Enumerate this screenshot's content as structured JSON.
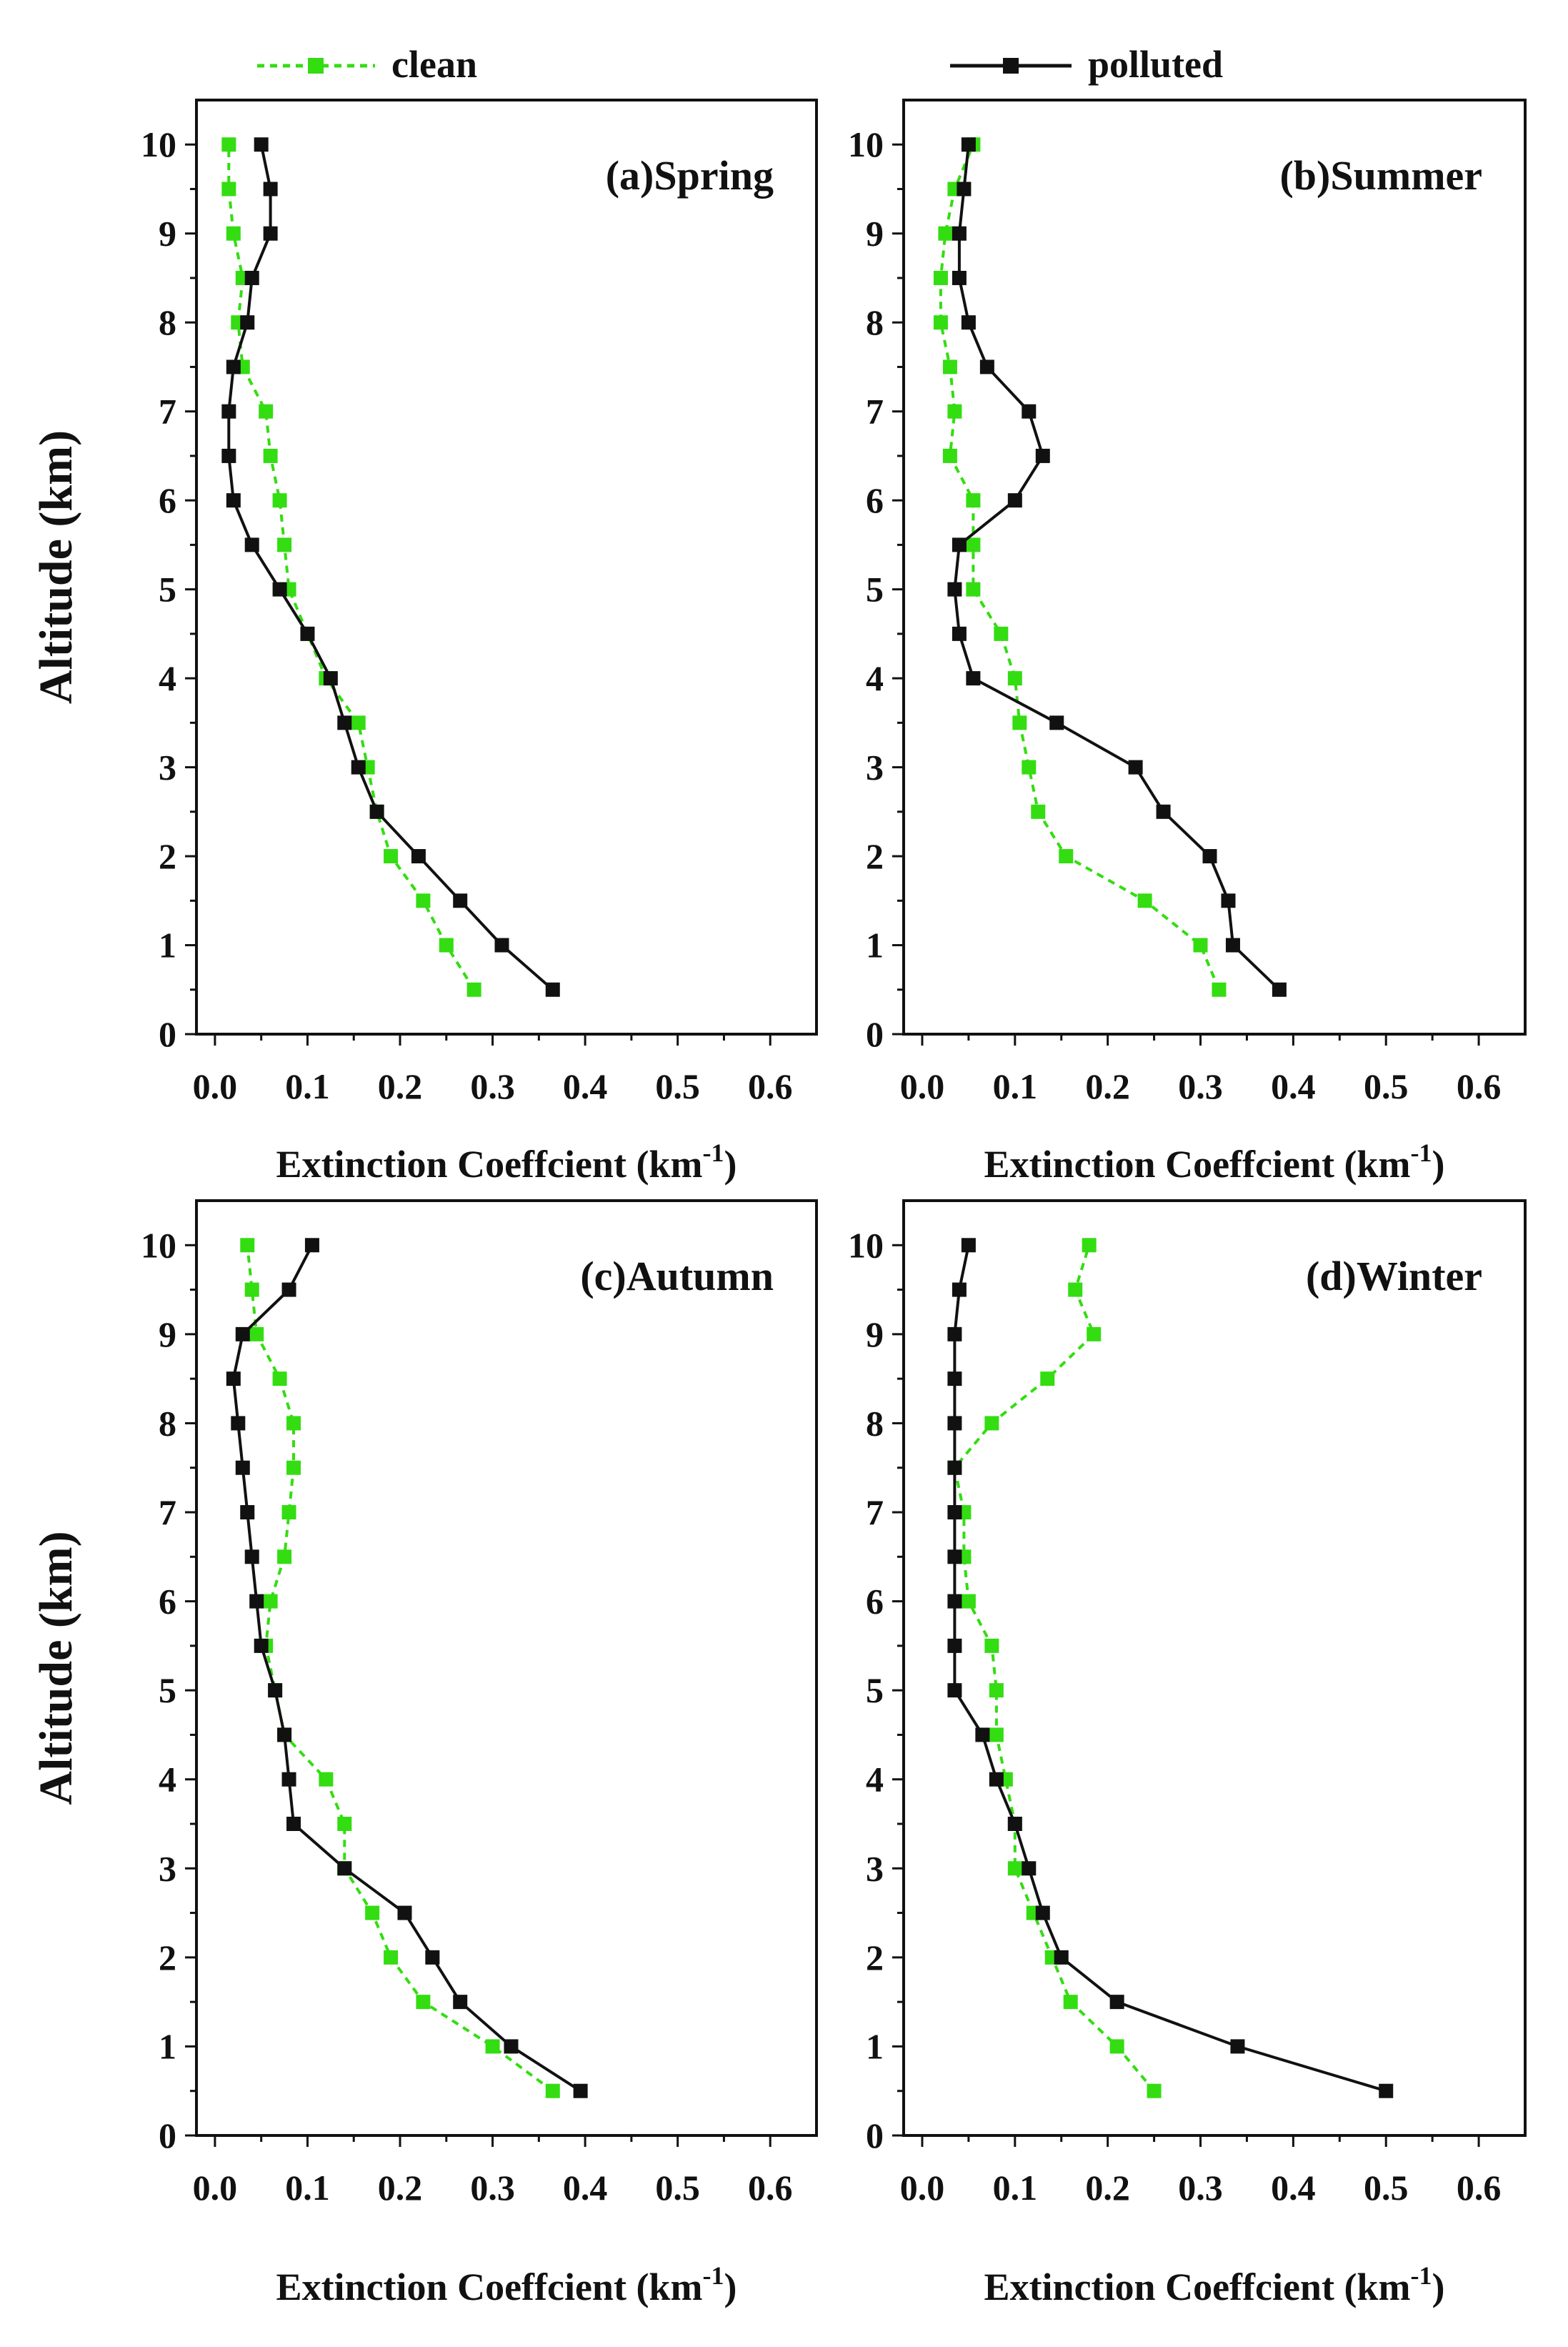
{
  "legend": {
    "entries": [
      {
        "label": "clean",
        "color": "#33dd11",
        "style": "dashed"
      },
      {
        "label": "polluted",
        "color": "#111111",
        "style": "solid"
      }
    ]
  },
  "chart_data": [
    {
      "type": "line",
      "title": "(a)Spring",
      "xlabel": "Extinction Coeffcient (km",
      "xlabel_sup": "-1",
      "xlabel_close": ")",
      "ylabel": "Altitude (km)",
      "xlim": [
        -0.02,
        0.65
      ],
      "ylim": [
        0,
        10.5
      ],
      "xticks": [
        "0.0",
        "0.1",
        "0.2",
        "0.3",
        "0.4",
        "0.5",
        "0.6"
      ],
      "yticks": [
        "0",
        "1",
        "2",
        "3",
        "4",
        "5",
        "6",
        "7",
        "8",
        "9",
        "10"
      ],
      "series": [
        {
          "name": "clean",
          "x": [
            0.28,
            0.25,
            0.225,
            0.19,
            0.175,
            0.165,
            0.155,
            0.12,
            0.1,
            0.08,
            0.075,
            0.07,
            0.06,
            0.055,
            0.03,
            0.025,
            0.03,
            0.02,
            0.015,
            0.015
          ],
          "y": [
            0.5,
            1,
            1.5,
            2,
            2.5,
            3,
            3.5,
            4,
            4.5,
            5,
            5.5,
            6,
            6.5,
            7,
            7.5,
            8,
            8.5,
            9,
            9.5,
            10
          ]
        },
        {
          "name": "polluted",
          "x": [
            0.365,
            0.31,
            0.265,
            0.22,
            0.175,
            0.155,
            0.14,
            0.125,
            0.1,
            0.07,
            0.04,
            0.02,
            0.015,
            0.015,
            0.02,
            0.035,
            0.04,
            0.06,
            0.06,
            0.05
          ],
          "y": [
            0.5,
            1,
            1.5,
            2,
            2.5,
            3,
            3.5,
            4,
            4.5,
            5,
            5.5,
            6,
            6.5,
            7,
            7.5,
            8,
            8.5,
            9,
            9.5,
            10
          ]
        }
      ]
    },
    {
      "type": "line",
      "title": "(b)Summer",
      "xlabel": "Extinction Coeffcient (km",
      "xlabel_sup": "-1",
      "xlabel_close": ")",
      "ylabel": "",
      "xlim": [
        -0.02,
        0.65
      ],
      "ylim": [
        0,
        10.5
      ],
      "xticks": [
        "0.0",
        "0.1",
        "0.2",
        "0.3",
        "0.4",
        "0.5",
        "0.6"
      ],
      "yticks": [
        "0",
        "1",
        "2",
        "3",
        "4",
        "5",
        "6",
        "7",
        "8",
        "9",
        "10"
      ],
      "series": [
        {
          "name": "clean",
          "x": [
            0.32,
            0.3,
            0.24,
            0.155,
            0.125,
            0.115,
            0.105,
            0.1,
            0.085,
            0.055,
            0.055,
            0.055,
            0.03,
            0.035,
            0.03,
            0.02,
            0.02,
            0.025,
            0.035,
            0.055
          ],
          "y": [
            0.5,
            1,
            1.5,
            2,
            2.5,
            3,
            3.5,
            4,
            4.5,
            5,
            5.5,
            6,
            6.5,
            7,
            7.5,
            8,
            8.5,
            9,
            9.5,
            10
          ]
        },
        {
          "name": "polluted",
          "x": [
            0.385,
            0.335,
            0.33,
            0.31,
            0.26,
            0.23,
            0.145,
            0.055,
            0.04,
            0.035,
            0.04,
            0.1,
            0.13,
            0.115,
            0.07,
            0.05,
            0.04,
            0.04,
            0.045,
            0.05
          ],
          "y": [
            0.5,
            1,
            1.5,
            2,
            2.5,
            3,
            3.5,
            4,
            4.5,
            5,
            5.5,
            6,
            6.5,
            7,
            7.5,
            8,
            8.5,
            9,
            9.5,
            10
          ]
        }
      ]
    },
    {
      "type": "line",
      "title": "(c)Autumn",
      "xlabel": "Extinction Coeffcient (km",
      "xlabel_sup": "-1",
      "xlabel_close": ")",
      "ylabel": "Altitude (km)",
      "xlim": [
        -0.02,
        0.65
      ],
      "ylim": [
        0,
        10.5
      ],
      "xticks": [
        "0.0",
        "0.1",
        "0.2",
        "0.3",
        "0.4",
        "0.5",
        "0.6"
      ],
      "yticks": [
        "0",
        "1",
        "2",
        "3",
        "4",
        "5",
        "6",
        "7",
        "8",
        "9",
        "10"
      ],
      "series": [
        {
          "name": "clean",
          "x": [
            0.365,
            0.3,
            0.225,
            0.19,
            0.17,
            0.14,
            0.14,
            0.12,
            0.075,
            0.065,
            0.055,
            0.06,
            0.075,
            0.08,
            0.085,
            0.085,
            0.07,
            0.045,
            0.04,
            0.035
          ],
          "y": [
            0.5,
            1,
            1.5,
            2,
            2.5,
            3,
            3.5,
            4,
            4.5,
            5,
            5.5,
            6,
            6.5,
            7,
            7.5,
            8,
            8.5,
            9,
            9.5,
            10
          ]
        },
        {
          "name": "polluted",
          "x": [
            0.395,
            0.32,
            0.265,
            0.235,
            0.205,
            0.14,
            0.085,
            0.08,
            0.075,
            0.065,
            0.05,
            0.045,
            0.04,
            0.035,
            0.03,
            0.025,
            0.02,
            0.03,
            0.08,
            0.105
          ],
          "y": [
            0.5,
            1,
            1.5,
            2,
            2.5,
            3,
            3.5,
            4,
            4.5,
            5,
            5.5,
            6,
            6.5,
            7,
            7.5,
            8,
            8.5,
            9,
            9.5,
            10
          ]
        }
      ]
    },
    {
      "type": "line",
      "title": "(d)Winter",
      "xlabel": "Extinction Coeffcient (km",
      "xlabel_sup": "-1",
      "xlabel_close": ")",
      "ylabel": "",
      "xlim": [
        -0.02,
        0.65
      ],
      "ylim": [
        0,
        10.5
      ],
      "xticks": [
        "0.0",
        "0.1",
        "0.2",
        "0.3",
        "0.4",
        "0.5",
        "0.6"
      ],
      "yticks": [
        "0",
        "1",
        "2",
        "3",
        "4",
        "5",
        "6",
        "7",
        "8",
        "9",
        "10"
      ],
      "series": [
        {
          "name": "clean",
          "x": [
            0.25,
            0.21,
            0.16,
            0.14,
            0.12,
            0.1,
            0.1,
            0.09,
            0.08,
            0.08,
            0.075,
            0.05,
            0.045,
            0.045,
            0.035,
            0.075,
            0.135,
            0.185,
            0.165,
            0.18
          ],
          "y": [
            0.5,
            1,
            1.5,
            2,
            2.5,
            3,
            3.5,
            4,
            4.5,
            5,
            5.5,
            6,
            6.5,
            7,
            7.5,
            8,
            8.5,
            9,
            9.5,
            10
          ]
        },
        {
          "name": "polluted",
          "x": [
            0.5,
            0.34,
            0.21,
            0.15,
            0.13,
            0.115,
            0.1,
            0.08,
            0.065,
            0.035,
            0.035,
            0.035,
            0.035,
            0.035,
            0.035,
            0.035,
            0.035,
            0.035,
            0.04,
            0.05
          ],
          "y": [
            0.5,
            1,
            1.5,
            2,
            2.5,
            3,
            3.5,
            4,
            4.5,
            5,
            5.5,
            6,
            6.5,
            7,
            7.5,
            8,
            8.5,
            9,
            9.5,
            10
          ]
        }
      ]
    }
  ]
}
